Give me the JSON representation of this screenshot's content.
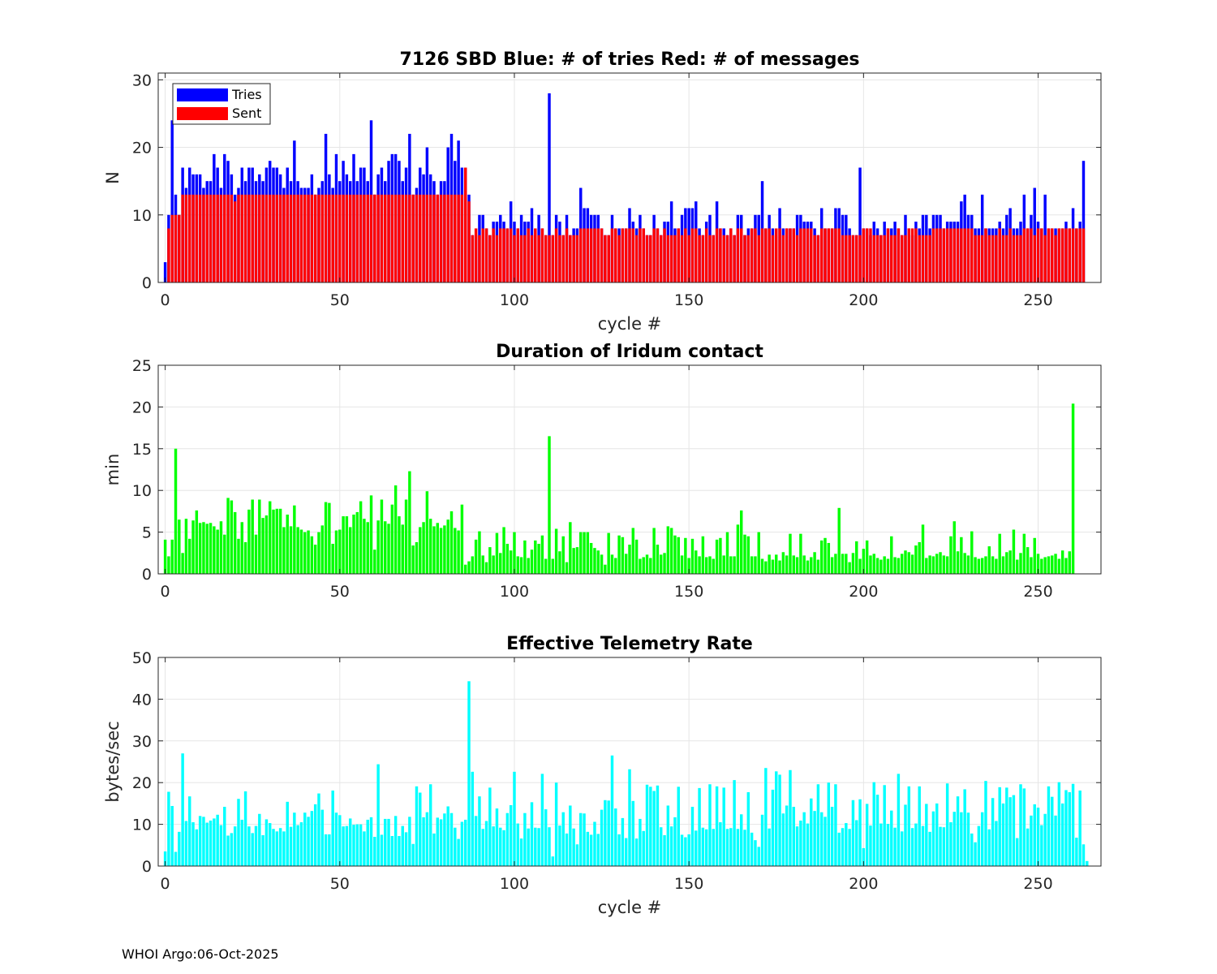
{
  "footer": "WHOI Argo:06-Oct-2025",
  "colors": {
    "tries": "#0000ff",
    "sent": "#ff0000",
    "duration": "#00ff00",
    "rate": "#00ffff"
  },
  "chart_data": [
    {
      "type": "bar",
      "title": "7126 SBD  Blue: # of tries   Red: # of messages",
      "xlabel": "cycle #",
      "ylabel": "N",
      "xlim": [
        -2,
        268
      ],
      "ylim": [
        0,
        31
      ],
      "xticks": [
        0,
        50,
        100,
        150,
        200,
        250
      ],
      "yticks": [
        0,
        10,
        20,
        30
      ],
      "legend": {
        "position": "top-left",
        "entries": [
          "Tries",
          "Sent"
        ]
      },
      "series": [
        {
          "name": "Tries",
          "color": "#0000ff",
          "values": [
            3,
            10,
            24,
            13,
            10,
            17,
            14,
            17,
            16,
            16,
            16,
            14,
            15,
            15,
            19,
            17,
            14,
            19,
            18,
            16,
            13,
            14,
            17,
            15,
            17,
            17,
            15,
            16,
            15,
            17,
            18,
            17,
            17,
            16,
            14,
            17,
            15,
            21,
            15,
            14,
            14,
            14,
            16,
            13,
            14,
            15,
            22,
            16,
            14,
            19,
            15,
            18,
            16,
            15,
            19,
            15,
            17,
            17,
            15,
            24,
            13,
            16,
            17,
            15,
            18,
            19,
            19,
            18,
            15,
            17,
            22,
            13,
            14,
            17,
            16,
            20,
            16,
            15,
            13,
            15,
            15,
            20,
            22,
            18,
            21,
            17,
            17,
            13,
            7,
            7,
            10,
            10,
            8,
            7,
            9,
            9,
            10,
            9,
            8,
            12,
            9,
            8,
            10,
            9,
            9,
            11,
            7,
            10,
            8,
            7,
            28,
            7,
            10,
            9,
            7,
            10,
            7,
            8,
            8,
            14,
            11,
            11,
            10,
            10,
            10,
            8,
            7,
            7,
            10,
            8,
            8,
            8,
            8,
            11,
            9,
            8,
            10,
            8,
            7,
            7,
            10,
            8,
            7,
            9,
            9,
            12,
            8,
            8,
            10,
            11,
            11,
            11,
            12,
            8,
            7,
            9,
            10,
            7,
            12,
            8,
            8,
            7,
            8,
            7,
            10,
            10,
            7,
            8,
            8,
            10,
            10,
            15,
            8,
            10,
            8,
            7,
            11,
            8,
            8,
            8,
            8,
            10,
            10,
            9,
            9,
            9,
            8,
            7,
            11,
            8,
            8,
            8,
            11,
            11,
            10,
            10,
            8,
            7,
            7,
            17,
            8,
            8,
            7,
            9,
            8,
            7,
            9,
            8,
            8,
            9,
            8,
            7,
            10,
            8,
            7,
            9,
            8,
            10,
            10,
            8,
            10,
            10,
            10,
            8,
            9,
            9,
            9,
            9,
            12,
            13,
            10,
            10,
            8,
            8,
            13,
            8,
            8,
            8,
            8,
            9,
            8,
            10,
            11,
            8,
            8,
            9,
            13,
            8,
            10,
            14,
            9,
            8,
            13,
            8,
            8,
            8,
            8,
            8,
            9,
            8,
            11,
            8,
            9,
            18
          ]
        },
        {
          "name": "Sent",
          "color": "#ff0000",
          "values": [
            0,
            8,
            10,
            10,
            10,
            13,
            13,
            13,
            13,
            13,
            13,
            13,
            13,
            13,
            13,
            13,
            13,
            13,
            13,
            13,
            12,
            13,
            13,
            13,
            13,
            13,
            13,
            13,
            13,
            13,
            13,
            13,
            13,
            13,
            13,
            13,
            13,
            13,
            13,
            13,
            13,
            13,
            13,
            13,
            13,
            13,
            13,
            13,
            13,
            13,
            13,
            13,
            13,
            13,
            13,
            13,
            13,
            13,
            13,
            13,
            13,
            13,
            13,
            13,
            13,
            13,
            13,
            13,
            13,
            13,
            13,
            13,
            13,
            13,
            13,
            13,
            13,
            13,
            13,
            13,
            13,
            13,
            13,
            13,
            13,
            13,
            17,
            12,
            7,
            8,
            7,
            8,
            8,
            7,
            8,
            7,
            8,
            8,
            8,
            8,
            7,
            8,
            7,
            7,
            8,
            7,
            8,
            7,
            8,
            7,
            7,
            7,
            8,
            7,
            7,
            8,
            7,
            7,
            7,
            8,
            8,
            8,
            8,
            8,
            8,
            8,
            7,
            7,
            8,
            8,
            7,
            8,
            8,
            8,
            8,
            7,
            8,
            8,
            7,
            7,
            8,
            8,
            7,
            8,
            7,
            7,
            7,
            8,
            7,
            8,
            7,
            8,
            8,
            7,
            7,
            8,
            7,
            7,
            8,
            8,
            7,
            7,
            8,
            7,
            8,
            8,
            7,
            7,
            8,
            8,
            7,
            8,
            8,
            8,
            7,
            8,
            8,
            7,
            8,
            8,
            8,
            7,
            8,
            8,
            8,
            8,
            7,
            7,
            8,
            8,
            8,
            8,
            8,
            8,
            7,
            7,
            7,
            7,
            7,
            7,
            8,
            8,
            8,
            7,
            7,
            7,
            7,
            8,
            7,
            7,
            8,
            7,
            7,
            8,
            8,
            8,
            7,
            7,
            7,
            7,
            8,
            8,
            8,
            8,
            8,
            8,
            8,
            8,
            8,
            8,
            8,
            8,
            7,
            7,
            7,
            8,
            7,
            7,
            7,
            8,
            7,
            7,
            8,
            7,
            7,
            7,
            8,
            8,
            8,
            7,
            8,
            8,
            7,
            8,
            8,
            7,
            8,
            8,
            8,
            8,
            8,
            8,
            8,
            8,
            0
          ]
        }
      ]
    },
    {
      "type": "bar",
      "title": "Duration of Iridum contact",
      "xlabel": "",
      "ylabel": "min",
      "xlim": [
        -2,
        268
      ],
      "ylim": [
        0,
        25
      ],
      "xticks": [
        0,
        50,
        100,
        150,
        200,
        250
      ],
      "yticks": [
        0,
        5,
        10,
        15,
        20,
        25
      ],
      "series": [
        {
          "name": "Duration",
          "color": "#00ff00",
          "values": [
            4.1,
            2.1,
            4.1,
            15.0,
            6.5,
            2.5,
            6.6,
            4.2,
            6.4,
            7.6,
            6.1,
            6.2,
            6.0,
            6.1,
            5.7,
            5.3,
            6.3,
            4.7,
            9.1,
            8.8,
            7.4,
            4.2,
            6.2,
            3.8,
            7.7,
            8.9,
            4.7,
            8.9,
            6.7,
            7.0,
            8.7,
            7.7,
            7.8,
            7.8,
            5.6,
            7.1,
            5.7,
            8.2,
            5.6,
            5.3,
            5.0,
            5.2,
            4.5,
            3.5,
            5.0,
            5.8,
            8.6,
            8.5,
            3.6,
            5.2,
            5.3,
            6.9,
            6.9,
            5.6,
            7.1,
            7.4,
            8.7,
            6.6,
            6.2,
            9.4,
            2.9,
            6.4,
            8.9,
            6.3,
            6.0,
            8.3,
            10.6,
            6.9,
            5.9,
            8.9,
            12.3,
            3.4,
            3.8,
            5.6,
            6.2,
            9.9,
            6.6,
            5.7,
            6.1,
            5.5,
            5.8,
            6.5,
            7.5,
            5.5,
            5.2,
            8.3,
            1.1,
            1.5,
            2.1,
            4.1,
            5.1,
            2.2,
            1.4,
            3.2,
            2.2,
            4.9,
            2.5,
            5.6,
            3.6,
            2.8,
            5.0,
            2.1,
            2.0,
            4.0,
            1.9,
            2.9,
            4.0,
            3.6,
            4.6,
            1.8,
            16.5,
            1.8,
            5.4,
            2.7,
            4.5,
            1.4,
            6.2,
            3.1,
            3.2,
            5.0,
            5.0,
            5.0,
            3.7,
            3.1,
            2.8,
            2.3,
            1.1,
            4.9,
            2.3,
            1.9,
            4.6,
            4.4,
            2.4,
            3.5,
            5.5,
            4.1,
            1.8,
            2.0,
            2.3,
            1.9,
            5.5,
            3.5,
            2.3,
            2.5,
            5.7,
            5.5,
            4.6,
            4.4,
            2.2,
            4.3,
            1.9,
            4.2,
            2.8,
            2.1,
            4.5,
            2.0,
            2.1,
            1.8,
            4.1,
            4.3,
            2.2,
            5.0,
            2.1,
            2.1,
            5.9,
            7.6,
            4.7,
            4.5,
            2.1,
            2.1,
            5.0,
            1.8,
            1.5,
            2.3,
            1.7,
            2.3,
            1.6,
            2.6,
            2.2,
            4.8,
            2.2,
            2.0,
            4.8,
            2.2,
            1.6,
            2.0,
            2.6,
            1.7,
            4.0,
            4.3,
            3.7,
            2.0,
            2.4,
            7.9,
            2.4,
            2.4,
            1.4,
            2.5,
            3.9,
            1.8,
            3.0,
            4.0,
            2.2,
            2.4,
            1.9,
            1.7,
            2.1,
            1.8,
            4.5,
            2.0,
            1.9,
            2.4,
            2.8,
            2.6,
            2.3,
            3.4,
            3.8,
            5.9,
            1.9,
            2.2,
            2.1,
            2.4,
            2.6,
            2.2,
            2.1,
            4.5,
            6.3,
            2.7,
            4.4,
            2.5,
            2.2,
            5.1,
            2.0,
            1.8,
            1.9,
            2.1,
            3.3,
            2.1,
            1.8,
            4.8,
            2.1,
            2.6,
            2.8,
            5.3,
            1.7,
            2.5,
            4.8,
            3.2,
            2.0,
            4.3,
            2.4,
            1.8,
            2.0,
            2.1,
            2.2,
            2.4,
            1.8,
            2.8,
            1.9,
            2.7,
            20.4
          ]
        }
      ]
    },
    {
      "type": "bar",
      "title": "Effective Telemetry Rate",
      "xlabel": "cycle #",
      "ylabel": "bytes/sec",
      "xlim": [
        -2,
        268
      ],
      "ylim": [
        0,
        50
      ],
      "xticks": [
        0,
        50,
        100,
        150,
        200,
        250
      ],
      "yticks": [
        0,
        10,
        20,
        30,
        40,
        50
      ],
      "series": [
        {
          "name": "Rate",
          "color": "#00ffff",
          "values": [
            3.5,
            17.8,
            14.4,
            3.4,
            8.2,
            27.0,
            10.8,
            16.7,
            10.5,
            8.8,
            12.0,
            11.8,
            10.4,
            10.9,
            11.4,
            12.3,
            9.8,
            14.2,
            7.3,
            7.9,
            9.5,
            16.1,
            11.1,
            17.9,
            9.5,
            7.9,
            9.6,
            12.5,
            7.4,
            11.2,
            10.3,
            8.9,
            8.3,
            9.1,
            8.3,
            15.4,
            9.4,
            12.8,
            9.8,
            10.5,
            12.8,
            11.8,
            13.2,
            14.8,
            17.4,
            13.5,
            7.6,
            7.6,
            18.1,
            12.8,
            12.2,
            9.5,
            9.6,
            11.4,
            9.9,
            10.0,
            10.0,
            8.3,
            11.1,
            11.7,
            7.0,
            24.4,
            7.5,
            11.3,
            11.3,
            7.2,
            12.0,
            7.2,
            9.6,
            8.1,
            11.8,
            5.3,
            19.1,
            17.6,
            11.7,
            12.9,
            19.6,
            7.8,
            11.6,
            11.2,
            12.6,
            14.3,
            12.7,
            9.2,
            6.5,
            10.6,
            11.1,
            44.3,
            22.6,
            12.0,
            16.7,
            8.9,
            10.8,
            18.8,
            9.5,
            13.8,
            9.2,
            8.6,
            12.7,
            14.6,
            22.6,
            10.2,
            6.6,
            12.7,
            9.0,
            15.3,
            9.2,
            9.1,
            22.1,
            13.6,
            9.3,
            2.3,
            20.0,
            9.7,
            12.9,
            7.8,
            14.5,
            9.0,
            5.2,
            12.7,
            12.6,
            8.2,
            7.5,
            10.6,
            7.7,
            13.5,
            15.8,
            15.7,
            26.5,
            13.8,
            7.6,
            11.5,
            6.7,
            23.2,
            15.6,
            6.6,
            11.3,
            8.4,
            19.5,
            19.0,
            18.0,
            19.3,
            9.3,
            7.4,
            14.5,
            9.5,
            11.7,
            19.0,
            7.5,
            6.9,
            7.6,
            14.2,
            8.5,
            18.7,
            9.2,
            8.8,
            19.6,
            8.9,
            19.1,
            10.5,
            18.8,
            8.9,
            9.1,
            20.6,
            8.9,
            12.4,
            8.7,
            17.7,
            8.0,
            6.2,
            4.6,
            12.3,
            23.5,
            9.0,
            18.3,
            22.7,
            21.9,
            12.6,
            14.5,
            23.0,
            14.2,
            9.5,
            10.9,
            12.9,
            10.2,
            16.2,
            13.2,
            19.6,
            12.9,
            11.8,
            20.0,
            14.2,
            19.6,
            8.0,
            9.1,
            10.3,
            8.9,
            15.8,
            11.0,
            16.0,
            4.3,
            14.9,
            9.7,
            20.1,
            17.1,
            10.2,
            19.4,
            10.1,
            13.3,
            9.2,
            22.1,
            8.3,
            14.7,
            19.1,
            9.1,
            10.2,
            19.1,
            9.6,
            14.9,
            8.2,
            13.1,
            15.0,
            9.4,
            9.3,
            19.8,
            10.5,
            13.0,
            16.7,
            12.9,
            18.4,
            12.8,
            7.8,
            5.7,
            9.6,
            12.9,
            20.4,
            8.8,
            16.3,
            10.8,
            18.9,
            15.0,
            18.8,
            16.5,
            17.0,
            6.7,
            19.6,
            18.6,
            9.0,
            12.1,
            14.8,
            14.0,
            9.8,
            12.5,
            19.1,
            16.6,
            12.1,
            20.1,
            15.0,
            18.2,
            17.7,
            19.7,
            6.8,
            18.1,
            5.2,
            1.2
          ]
        }
      ]
    }
  ]
}
